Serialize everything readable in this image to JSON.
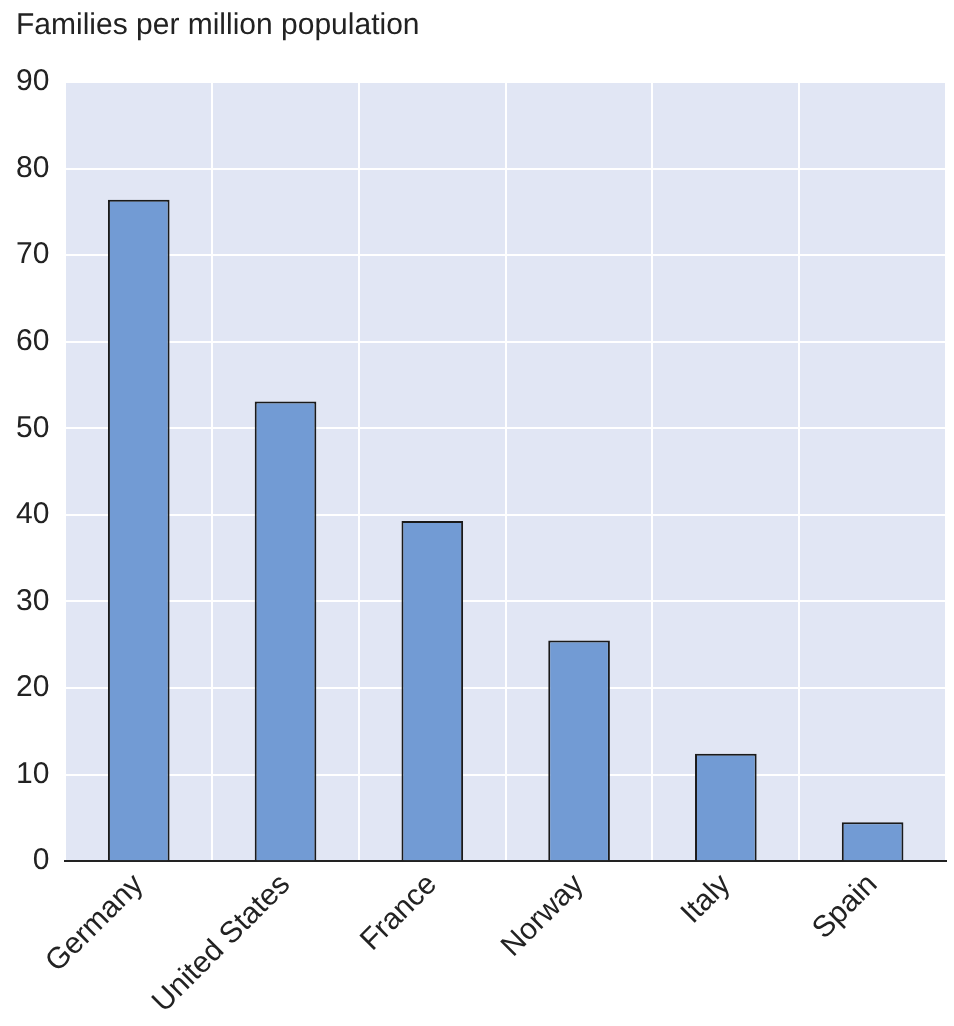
{
  "chart_data": {
    "type": "bar",
    "ylabel": "Families per million population",
    "categories": [
      "Germany",
      "United States",
      "France",
      "Norway",
      "Italy",
      "Spain"
    ],
    "values": [
      76.4,
      53.1,
      39.3,
      25.5,
      12.4,
      4.5
    ],
    "color": "#729bd4",
    "ylim": [
      0,
      90
    ],
    "yticks": [
      0,
      10,
      20,
      30,
      40,
      50,
      60,
      70,
      80,
      90
    ],
    "grid": true
  }
}
